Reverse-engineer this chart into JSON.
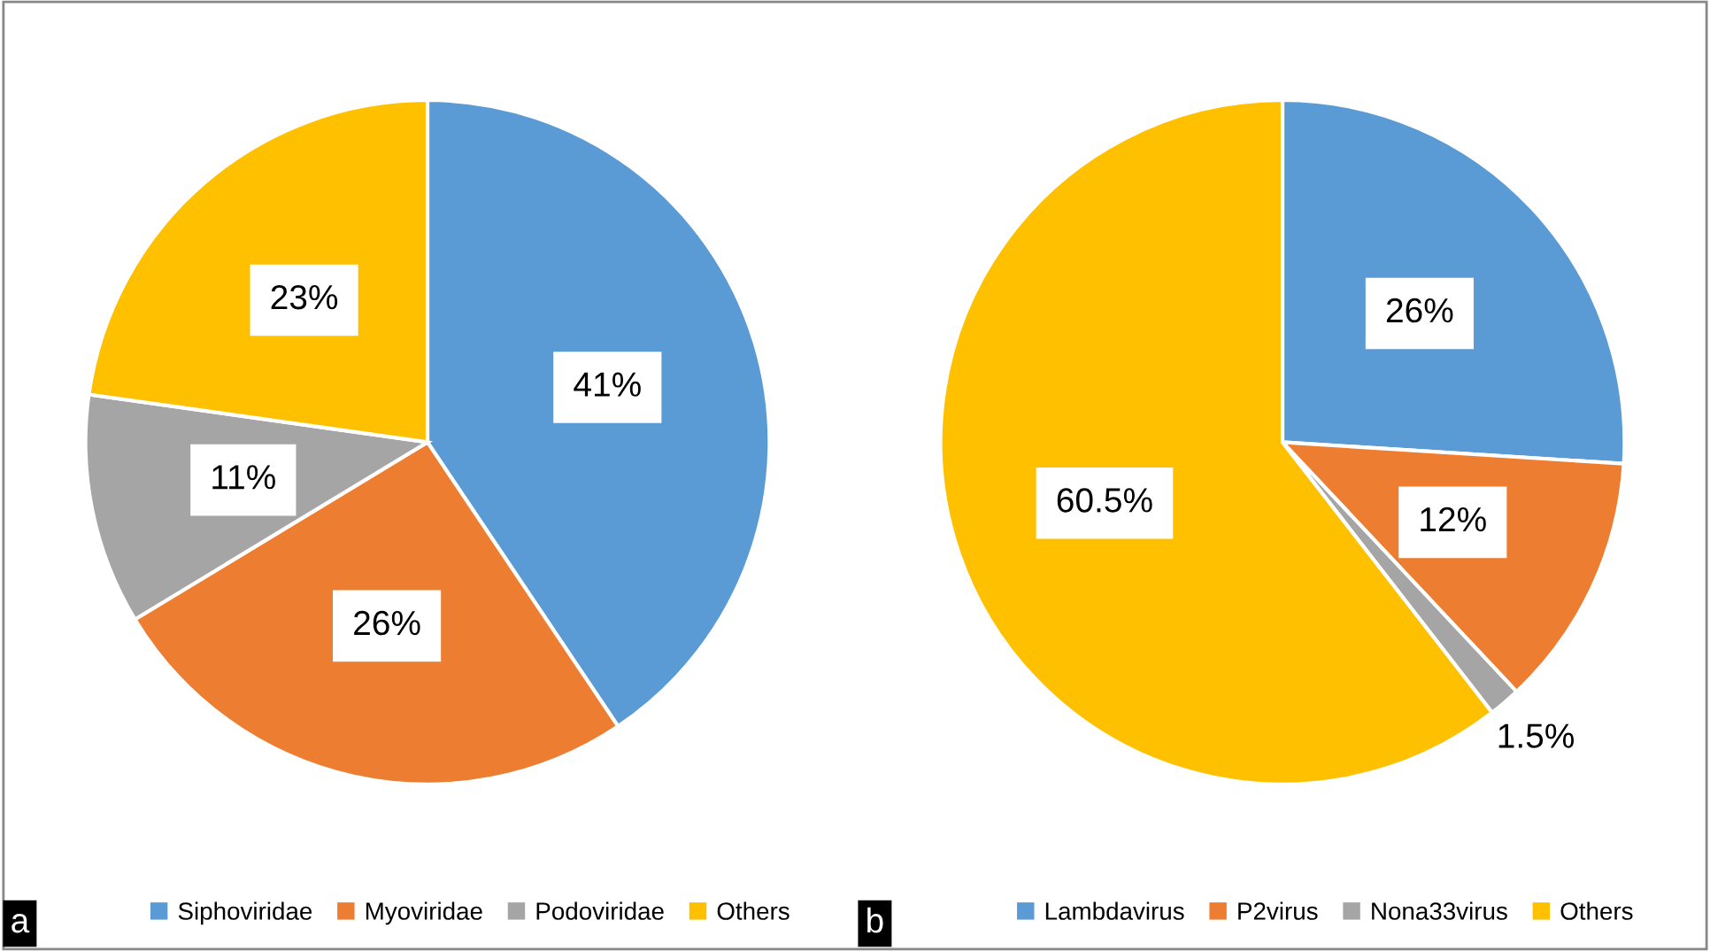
{
  "chart_data": [
    {
      "type": "pie",
      "categories": [
        "Siphoviridae",
        "Myoviridae",
        "Podoviridae",
        "Others"
      ],
      "values": [
        41,
        26,
        11,
        23
      ],
      "colors": [
        "#5b9bd5",
        "#ed7d31",
        "#a5a5a5",
        "#ffc000"
      ],
      "value_labels": [
        "41%",
        "26%",
        "11%",
        "23%"
      ],
      "legend": "bottom",
      "annotations": [
        "a"
      ]
    },
    {
      "type": "pie",
      "categories": [
        "Lambdavirus",
        "P2virus",
        "Nona33virus",
        "Others"
      ],
      "values": [
        26,
        12,
        1.5,
        60.5
      ],
      "colors": [
        "#5b9bd5",
        "#ed7d31",
        "#a5a5a5",
        "#ffc000"
      ],
      "value_labels": [
        "26%",
        "12%",
        "1.5%",
        "60.5%"
      ],
      "legend": "bottom",
      "annotations": [
        "b"
      ]
    }
  ]
}
